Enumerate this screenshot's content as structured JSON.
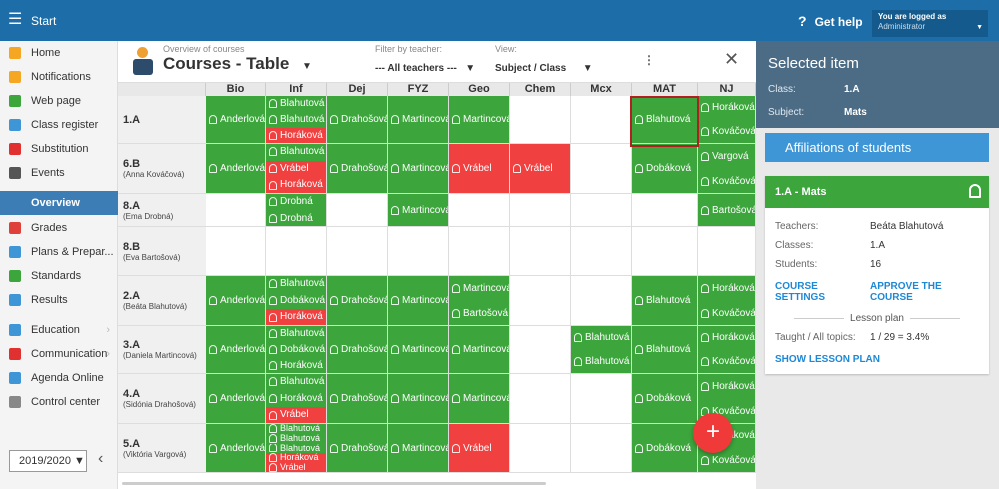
{
  "topbar": {
    "start": "Start",
    "help": "Get help",
    "user_line1": "You are logged as",
    "user_line2": "Administrator"
  },
  "sidebar": {
    "items": [
      {
        "label": "Home",
        "icon": "star-icon",
        "color": "#f5a623"
      },
      {
        "label": "Notifications",
        "icon": "envelope-icon",
        "color": "#f5a623"
      },
      {
        "label": "Web page",
        "icon": "home-icon",
        "color": "#3ca53c"
      },
      {
        "label": "Class register",
        "icon": "book-icon",
        "color": "#3e96d7"
      },
      {
        "label": "Substitution",
        "icon": "person-icon",
        "color": "#e03030"
      },
      {
        "label": "Events",
        "icon": "calendar-icon",
        "color": "#555555"
      },
      {
        "label": "Overview",
        "icon": "check-circle-icon",
        "color": "#3c7db6"
      },
      {
        "label": "Grades",
        "icon": "grades-icon",
        "color": "#e0403a"
      },
      {
        "label": "Plans & Prepar...",
        "icon": "plans-icon",
        "color": "#3e96d7"
      },
      {
        "label": "Standards",
        "icon": "shield-icon",
        "color": "#3ca53c"
      },
      {
        "label": "Results",
        "icon": "bar-chart-icon",
        "color": "#3e96d7"
      },
      {
        "label": "Education",
        "icon": "education-icon",
        "color": "#3e96d7"
      },
      {
        "label": "Communication",
        "icon": "chat-icon",
        "color": "#e03030"
      },
      {
        "label": "Agenda Online",
        "icon": "pen-icon",
        "color": "#3e96d7"
      },
      {
        "label": "Control center",
        "icon": "gear-icon",
        "color": "#888888"
      }
    ],
    "year": "2019/2020"
  },
  "header": {
    "overview_label": "Overview of courses",
    "title": "Courses - Table",
    "filter_label": "Filter by teacher:",
    "filter_value": "--- All teachers ---",
    "view_label": "View:",
    "view_value": "Subject / Class"
  },
  "grid": {
    "columns": [
      "Bio",
      "Inf",
      "Dej",
      "FYZ",
      "Geo",
      "Chem",
      "Mcx",
      "MAT",
      "NJ"
    ],
    "rows": [
      {
        "cls": "1.A",
        "teacher": "",
        "cells": [
          [
            {
              "n": "Anderlová",
              "c": "g"
            }
          ],
          [
            {
              "n": "Blahutová",
              "c": "g"
            },
            {
              "n": "Blahutová",
              "c": "g"
            },
            {
              "n": "Horáková",
              "c": "r"
            }
          ],
          [
            {
              "n": "Drahošová",
              "c": "g"
            }
          ],
          [
            {
              "n": "Martincová",
              "c": "g"
            }
          ],
          [
            {
              "n": "Martincová",
              "c": "g"
            }
          ],
          [],
          [],
          [
            {
              "n": "Blahutová",
              "c": "g"
            }
          ],
          [
            {
              "n": "Horáková",
              "c": "g"
            },
            {
              "n": "Kováčová",
              "c": "g"
            }
          ]
        ]
      },
      {
        "cls": "6.B",
        "teacher": "(Anna Kováčová)",
        "cells": [
          [
            {
              "n": "Anderlová",
              "c": "g"
            }
          ],
          [
            {
              "n": "Blahutová",
              "c": "g"
            },
            {
              "n": "Vrábel",
              "c": "r"
            },
            {
              "n": "Horáková",
              "c": "r"
            }
          ],
          [
            {
              "n": "Drahošová",
              "c": "g"
            }
          ],
          [
            {
              "n": "Martincová",
              "c": "g"
            }
          ],
          [
            {
              "n": "Vrábel",
              "c": "r"
            }
          ],
          [
            {
              "n": "Vrábel",
              "c": "r"
            }
          ],
          [],
          [
            {
              "n": "Dobáková",
              "c": "g"
            }
          ],
          [
            {
              "n": "Vargová",
              "c": "g"
            },
            {
              "n": "Kováčová",
              "c": "g"
            }
          ]
        ]
      },
      {
        "cls": "8.A",
        "teacher": "(Ema Drobná)",
        "cells": [
          [],
          [
            {
              "n": "Drobná",
              "c": "g"
            },
            {
              "n": "Drobná",
              "c": "g"
            }
          ],
          [],
          [
            {
              "n": "Martincová",
              "c": "g"
            }
          ],
          [],
          [],
          [],
          [],
          [
            {
              "n": "Bartošová",
              "c": "g"
            }
          ]
        ]
      },
      {
        "cls": "8.B",
        "teacher": "(Eva Bartošová)",
        "cells": [
          [],
          [],
          [],
          [],
          [],
          [],
          [],
          [],
          []
        ]
      },
      {
        "cls": "2.A",
        "teacher": "(Beáta Blahutová)",
        "cells": [
          [
            {
              "n": "Anderlová",
              "c": "g"
            }
          ],
          [
            {
              "n": "Blahutová",
              "c": "g"
            },
            {
              "n": "Dobáková",
              "c": "g"
            },
            {
              "n": "Horáková",
              "c": "r"
            }
          ],
          [
            {
              "n": "Drahošová",
              "c": "g"
            }
          ],
          [
            {
              "n": "Martincová",
              "c": "g"
            }
          ],
          [
            {
              "n": "Martincová",
              "c": "g"
            },
            {
              "n": "Bartošová",
              "c": "g"
            }
          ],
          [],
          [],
          [
            {
              "n": "Blahutová",
              "c": "g"
            }
          ],
          [
            {
              "n": "Horáková",
              "c": "g"
            },
            {
              "n": "Kováčová",
              "c": "g"
            }
          ]
        ]
      },
      {
        "cls": "3.A",
        "teacher": "(Daniela Martincová)",
        "cells": [
          [
            {
              "n": "Anderlová",
              "c": "g"
            }
          ],
          [
            {
              "n": "Blahutová",
              "c": "g"
            },
            {
              "n": "Dobáková",
              "c": "g"
            },
            {
              "n": "Horáková",
              "c": "g"
            }
          ],
          [
            {
              "n": "Drahošová",
              "c": "g"
            }
          ],
          [
            {
              "n": "Martincová",
              "c": "g"
            }
          ],
          [
            {
              "n": "Martincová",
              "c": "g"
            }
          ],
          [],
          [
            {
              "n": "Blahutová",
              "c": "g"
            },
            {
              "n": "Blahutová",
              "c": "g"
            }
          ],
          [
            {
              "n": "Blahutová",
              "c": "g"
            }
          ],
          [
            {
              "n": "Horáková",
              "c": "g"
            },
            {
              "n": "Kováčová",
              "c": "g"
            }
          ]
        ]
      },
      {
        "cls": "4.A",
        "teacher": "(Sidónia Drahošová)",
        "cells": [
          [
            {
              "n": "Anderlová",
              "c": "g"
            }
          ],
          [
            {
              "n": "Blahutová",
              "c": "g"
            },
            {
              "n": "Horáková",
              "c": "g"
            },
            {
              "n": "Vrábel",
              "c": "r"
            }
          ],
          [
            {
              "n": "Drahošová",
              "c": "g"
            }
          ],
          [
            {
              "n": "Martincová",
              "c": "g"
            }
          ],
          [
            {
              "n": "Martincová",
              "c": "g"
            }
          ],
          [],
          [],
          [
            {
              "n": "Dobáková",
              "c": "g"
            }
          ],
          [
            {
              "n": "Horáková",
              "c": "g"
            },
            {
              "n": "Kováčová",
              "c": "g"
            }
          ]
        ]
      },
      {
        "cls": "5.A",
        "teacher": "(Viktória Vargová)",
        "cells": [
          [
            {
              "n": "Anderlová",
              "c": "g"
            }
          ],
          [
            {
              "n": "Blahutová",
              "c": "g"
            },
            {
              "n": "Blahutová",
              "c": "g"
            },
            {
              "n": "Blahutová",
              "c": "g"
            },
            {
              "n": "Horáková",
              "c": "r"
            },
            {
              "n": "Vrábel",
              "c": "r"
            }
          ],
          [
            {
              "n": "Drahošová",
              "c": "g"
            }
          ],
          [
            {
              "n": "Martincová",
              "c": "g"
            }
          ],
          [
            {
              "n": "Vrábel",
              "c": "r"
            }
          ],
          [],
          [],
          [
            {
              "n": "Dobáková",
              "c": "g"
            }
          ],
          [
            {
              "n": "Horáková",
              "c": "g"
            },
            {
              "n": "Kováčová",
              "c": "g"
            }
          ]
        ]
      }
    ]
  },
  "panel": {
    "title": "Selected item",
    "class_label": "Class:",
    "class_value": "1.A",
    "subject_label": "Subject:",
    "subject_value": "Mats",
    "affiliations": "Affiliations of students",
    "card_title": "1.A - Mats",
    "teachers_label": "Teachers:",
    "teachers_value": "Beáta Blahutová",
    "classes_label": "Classes:",
    "classes_value": "1.A",
    "students_label": "Students:",
    "students_value": "16",
    "course_settings": "COURSE SETTINGS",
    "approve_course": "APPROVE THE COURSE",
    "lesson_plan": "Lesson plan",
    "taught_label": "Taught / All topics:",
    "taught_value": "1 / 29 = 3.4%",
    "show_lesson_plan": "SHOW LESSON PLAN"
  },
  "colors": {
    "green": "#3ca53c",
    "red": "#f04040",
    "blue": "#1d6ea8"
  }
}
